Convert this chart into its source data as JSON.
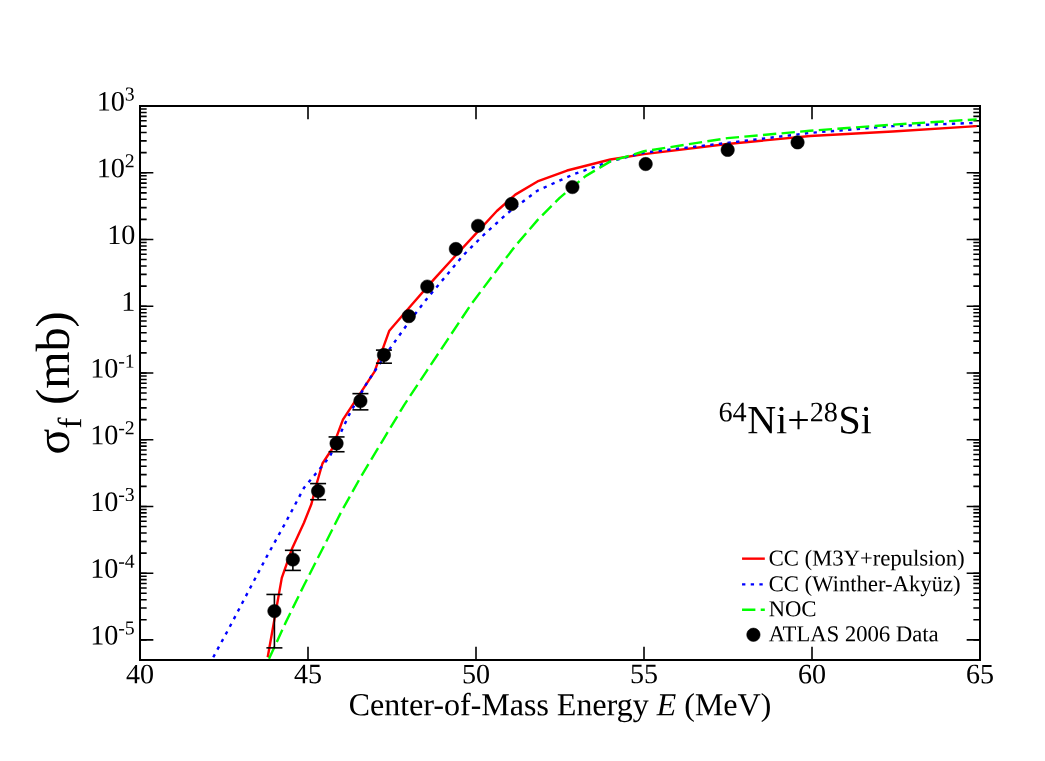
{
  "chart_data": {
    "type": "line",
    "xlabel": "Center-of-Mass Energy *E* (MeV)",
    "ylabel": "σ$_{f}$ (mb)",
    "legend_title": "$^{64}$Ni+$^{28}$Si",
    "xlim": [
      40,
      65
    ],
    "ylim": [
      5e-06,
      1000
    ],
    "log": "y",
    "legend": "bottom right",
    "xticks": [
      40,
      45,
      50,
      55,
      60,
      65
    ],
    "yticks": [
      {
        "value": 1e-05,
        "label": "10$^{-5}$"
      },
      {
        "value": 0.0001,
        "label": "10$^{-4}$"
      },
      {
        "value": 0.001,
        "label": "10$^{-3}$"
      },
      {
        "value": 0.01,
        "label": "10$^{-2}$"
      },
      {
        "value": 0.1,
        "label": "10$^{-1}$"
      },
      1,
      10,
      {
        "value": 100,
        "label": "10$^{2}$"
      },
      {
        "value": 1000,
        "label": "10$^{3}$"
      }
    ],
    "series": [
      {
        "name": "CC (M3Y+repulsion)",
        "type": "line",
        "color": "#ff0000",
        "line_style": "solid",
        "marker": "none",
        "x": [
          43.8,
          44.22,
          44.52,
          44.88,
          45.1,
          45.27,
          45.43,
          45.71,
          46.04,
          46.98,
          47.42,
          48.08,
          48.74,
          49.4,
          50.06,
          50.62,
          51.17,
          51.83,
          52.71,
          54.0,
          55.0,
          57.48,
          59.94,
          62.4,
          64.9
        ],
        "values": [
          5.5e-06,
          8.5e-05,
          0.00023,
          0.00057,
          0.00108,
          0.0023,
          0.0044,
          0.0072,
          0.02,
          0.105,
          0.43,
          1.04,
          2.5,
          5.8,
          13.2,
          26.7,
          47,
          74,
          108,
          158,
          190,
          270,
          355,
          415,
          500
        ]
      },
      {
        "name": "CC (Winther-Akyüz)",
        "type": "line",
        "color": "#0000ff",
        "line_style": "dotted",
        "marker": "none",
        "x": [
          42.18,
          42.68,
          43.23,
          43.78,
          44.33,
          44.88,
          45.21,
          45.65,
          46.21,
          46.76,
          47.42,
          47.97,
          48.52,
          49.07,
          49.62,
          50.28,
          50.95,
          51.83,
          52.93,
          54.0,
          55.0,
          57.48,
          59.94,
          62.4,
          64.9
        ],
        "values": [
          5.5e-06,
          1.6e-05,
          5.4e-05,
          0.00018,
          0.00057,
          0.0019,
          0.003,
          0.0056,
          0.023,
          0.072,
          0.225,
          0.55,
          1.26,
          2.7,
          5.8,
          12.4,
          25,
          54,
          96,
          148,
          200,
          280,
          395,
          500,
          560
        ]
      },
      {
        "name": "NOC",
        "type": "line",
        "color": "#00ff00",
        "line_style": "dashed",
        "marker": "none",
        "x": [
          43.84,
          44.33,
          44.88,
          45.43,
          45.99,
          46.54,
          47.2,
          47.86,
          48.52,
          49.18,
          49.84,
          50.5,
          51.17,
          51.83,
          52.49,
          53.26,
          54.0,
          55.0,
          57.48,
          59.94,
          62.4,
          64.9
        ],
        "values": [
          5.2e-06,
          1.8e-05,
          6.6e-05,
          0.00023,
          0.00083,
          0.0026,
          0.0093,
          0.033,
          0.105,
          0.33,
          1.04,
          2.9,
          8.0,
          19.5,
          42,
          89,
          148,
          210,
          330,
          425,
          525,
          630
        ]
      },
      {
        "name": "ATLAS 2006 Data",
        "type": "scatter",
        "color": "#000000",
        "marker": "circle",
        "x": [
          44.0,
          44.55,
          45.3,
          45.85,
          46.56,
          47.26,
          48.0,
          48.55,
          49.4,
          50.06,
          51.06,
          52.87,
          55.05,
          57.49,
          59.57
        ],
        "values": [
          2.7e-05,
          0.00016,
          0.0017,
          0.0088,
          0.038,
          0.186,
          0.71,
          1.97,
          7.2,
          16,
          34,
          61,
          135,
          220,
          285
        ],
        "errors": [
          [
            7.6e-06,
            4.8e-05
          ],
          [
            0.00011,
            0.00022
          ],
          [
            0.00126,
            0.0022
          ],
          [
            0.0066,
            0.011
          ],
          [
            0.028,
            0.049
          ],
          [
            0.14,
            0.22
          ],
          null,
          null,
          null,
          null,
          null,
          null,
          null,
          null,
          null
        ]
      }
    ]
  }
}
